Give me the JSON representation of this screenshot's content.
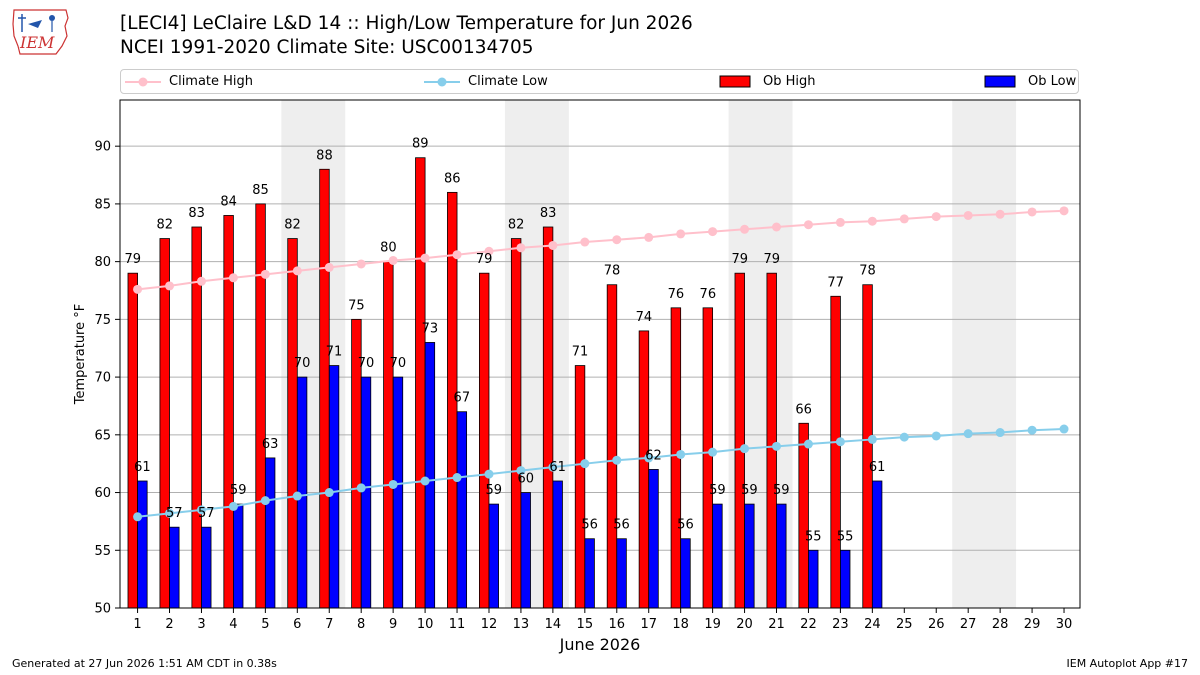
{
  "header": {
    "logo_text": "IEM",
    "title_line1": "[LECI4] LeClaire L&D 14 :: High/Low Temperature for Jun 2026",
    "title_line2": "NCEI 1991-2020 Climate Site: USC00134705"
  },
  "legend": {
    "climate_high": "Climate High",
    "climate_low": "Climate Low",
    "ob_high": "Ob High",
    "ob_low": "Ob Low"
  },
  "colors": {
    "climate_high": "#ffc0cb",
    "climate_low": "#87ceeb",
    "ob_high": "#ff0000",
    "ob_low": "#0000ff",
    "weekend_shade": "#eeeeee",
    "grid": "#b0b0b0"
  },
  "chart_data": {
    "type": "bar",
    "xlabel": "June 2026",
    "ylabel": "Temperature °F",
    "ylim": [
      50,
      94
    ],
    "yticks": [
      50,
      55,
      60,
      65,
      70,
      75,
      80,
      85,
      90
    ],
    "xlim": [
      0.45,
      30.5
    ],
    "grid": "horizontal",
    "legend_position": "top",
    "days": [
      1,
      2,
      3,
      4,
      5,
      6,
      7,
      8,
      9,
      10,
      11,
      12,
      13,
      14,
      15,
      16,
      17,
      18,
      19,
      20,
      21,
      22,
      23,
      24,
      25,
      26,
      27,
      28,
      29,
      30
    ],
    "weekend_shading": [
      [
        6,
        7
      ],
      [
        13,
        14
      ],
      [
        20,
        21
      ],
      [
        27,
        28
      ]
    ],
    "series": [
      {
        "name": "Ob High",
        "type": "bar",
        "values": [
          79,
          82,
          83,
          84,
          85,
          82,
          88,
          75,
          80,
          89,
          86,
          79,
          82,
          83,
          71,
          78,
          74,
          76,
          76,
          79,
          79,
          66,
          77,
          78
        ]
      },
      {
        "name": "Ob Low",
        "type": "bar",
        "values": [
          61,
          57,
          57,
          59,
          63,
          70,
          71,
          70,
          70,
          73,
          67,
          59,
          60,
          61,
          56,
          56,
          62,
          56,
          59,
          59,
          59,
          55,
          55,
          61
        ]
      },
      {
        "name": "Climate High",
        "type": "line",
        "values": [
          77.6,
          77.9,
          78.3,
          78.6,
          78.9,
          79.2,
          79.5,
          79.8,
          80.1,
          80.3,
          80.6,
          80.9,
          81.2,
          81.4,
          81.7,
          81.9,
          82.1,
          82.4,
          82.6,
          82.8,
          83.0,
          83.2,
          83.4,
          83.5,
          83.7,
          83.9,
          84.0,
          84.1,
          84.3,
          84.4
        ]
      },
      {
        "name": "Climate Low",
        "type": "line",
        "values": [
          57.9,
          58.2,
          58.5,
          58.8,
          59.3,
          59.7,
          60.0,
          60.4,
          60.7,
          61.0,
          61.3,
          61.6,
          61.9,
          62.2,
          62.5,
          62.8,
          63.0,
          63.3,
          63.5,
          63.8,
          64.0,
          64.2,
          64.4,
          64.6,
          64.8,
          64.9,
          65.1,
          65.2,
          65.4,
          65.5
        ]
      }
    ]
  },
  "footer": {
    "left": "Generated at 27 Jun 2026 1:51 AM CDT in 0.38s",
    "right": "IEM Autoplot App #17"
  }
}
